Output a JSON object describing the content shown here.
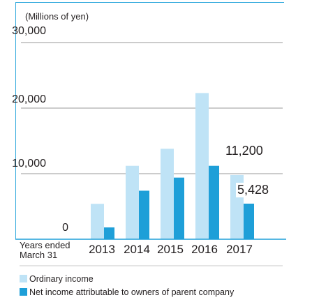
{
  "unit_label": "(Millions of yen)",
  "years_caption_line1": "Years ended",
  "years_caption_line2": "March 31",
  "colors": {
    "series1": "#bfe3f6",
    "series2": "#1e9fd8",
    "axis": "#1e9fd8",
    "grid": "#9a9a9a"
  },
  "chart_data": {
    "type": "bar",
    "categories": [
      "2013",
      "2014",
      "2015",
      "2016",
      "2017"
    ],
    "ylim": [
      0,
      30000
    ],
    "yticks": [
      "30,000",
      "20,000",
      "10,000",
      "0"
    ],
    "yticks_values": [
      30000,
      20000,
      10000,
      0
    ],
    "series": [
      {
        "name": "Ordinary income",
        "values": [
          5400,
          11200,
          13800,
          22300,
          9800
        ]
      },
      {
        "name": "Net income attributable to owners of parent company",
        "values": [
          1800,
          7400,
          9400,
          11200,
          5428
        ]
      }
    ],
    "data_labels": [
      "11,200",
      "5,428"
    ],
    "data_label_values": [
      11200,
      5428
    ]
  }
}
